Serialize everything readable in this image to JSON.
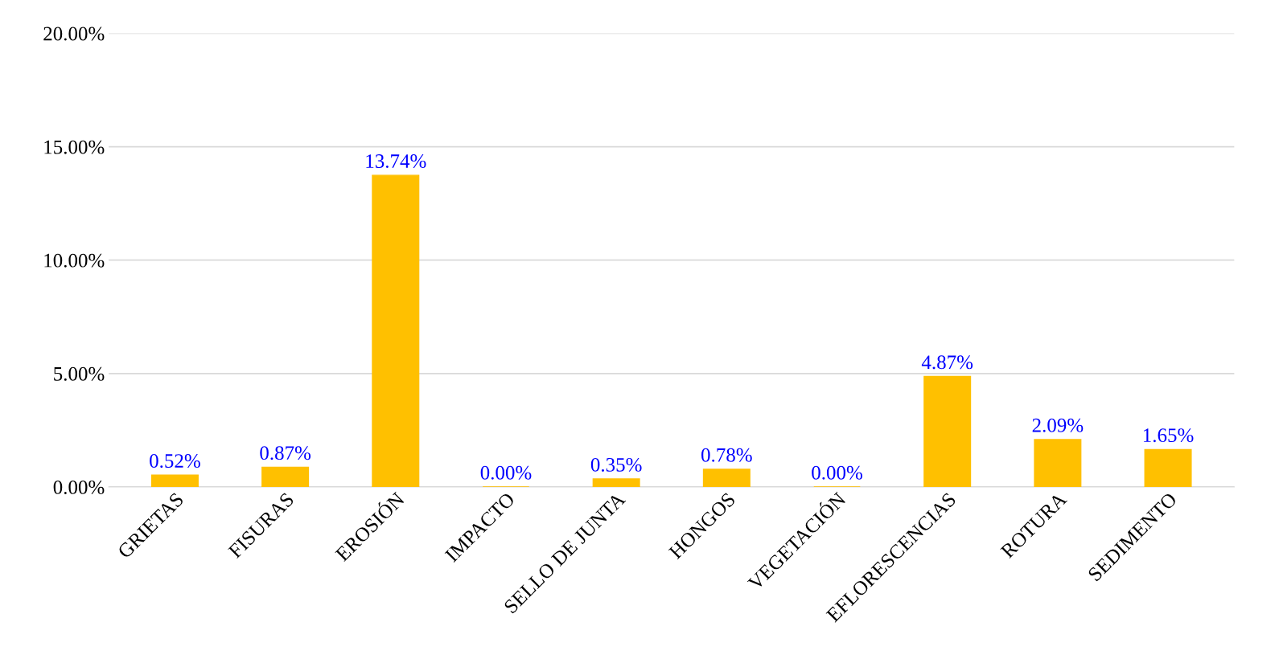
{
  "chart_data": {
    "type": "bar",
    "categories": [
      "GRIETAS",
      "FISURAS",
      "EROSIÓN",
      "IMPACTO",
      "SELLO DE JUNTA",
      "HONGOS",
      "VEGETACIÓN",
      "EFLORESCENCIAS",
      "ROTURA",
      "SEDIMENTO"
    ],
    "values": [
      0.52,
      0.87,
      13.74,
      0.0,
      0.35,
      0.78,
      0.0,
      4.87,
      2.09,
      1.65
    ],
    "value_labels": [
      "0.52%",
      "0.87%",
      "13.74%",
      "0.00%",
      "0.35%",
      "0.78%",
      "0.00%",
      "4.87%",
      "2.09%",
      "1.65%"
    ],
    "color": "#ffc000",
    "ylim": [
      0,
      20
    ],
    "yticks": [
      {
        "value": 0,
        "label": "0.00%"
      },
      {
        "value": 5,
        "label": "5.00%"
      },
      {
        "value": 10,
        "label": "10.00%"
      },
      {
        "value": 15,
        "label": "15.00%"
      },
      {
        "value": 20,
        "label": "20.00%"
      }
    ],
    "grid": "y"
  }
}
